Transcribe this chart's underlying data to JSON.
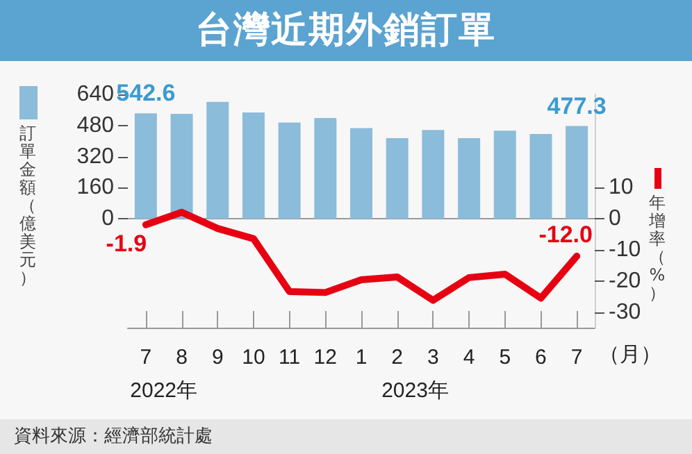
{
  "chart_data": {
    "type": "bar",
    "title": "台灣近期外銷訂單",
    "categories": [
      "7",
      "8",
      "9",
      "10",
      "11",
      "12",
      "1",
      "2",
      "3",
      "4",
      "5",
      "6",
      "7"
    ],
    "xlabel": "（月）",
    "ylabel": "訂單金額（億美元）",
    "y2label": "年增率（%）",
    "series": [
      {
        "color": "#8bbcd9",
        "values": [
          542.6,
          540,
          602,
          547,
          495,
          519,
          467,
          415,
          457,
          415,
          453,
          436,
          477.3
        ],
        "value_labels": [
          "542.6",
          null,
          null,
          null,
          null,
          null,
          null,
          null,
          null,
          null,
          null,
          null,
          "477.3"
        ]
      },
      {
        "type": "line",
        "axis": "y2",
        "color": "#e60012",
        "values": [
          -1.9,
          2.1,
          -3.1,
          -6.4,
          -23.4,
          -23.7,
          -19.6,
          -18.7,
          -26.2,
          -18.9,
          -17.8,
          -25.5,
          -12.0
        ],
        "value_labels": [
          "-1.9",
          null,
          null,
          null,
          null,
          null,
          null,
          null,
          null,
          null,
          null,
          null,
          "-12.0"
        ]
      }
    ],
    "ylim": [
      -560,
      640
    ],
    "yticks": [
      0,
      160,
      320,
      480,
      640
    ],
    "y2lim": [
      -35,
      40
    ],
    "y2ticks": [
      -30,
      -20,
      -10,
      0,
      10
    ],
    "marker": "none",
    "annotations": [
      "2022年",
      "2023年",
      "資料來源：經濟部統計處"
    ]
  }
}
